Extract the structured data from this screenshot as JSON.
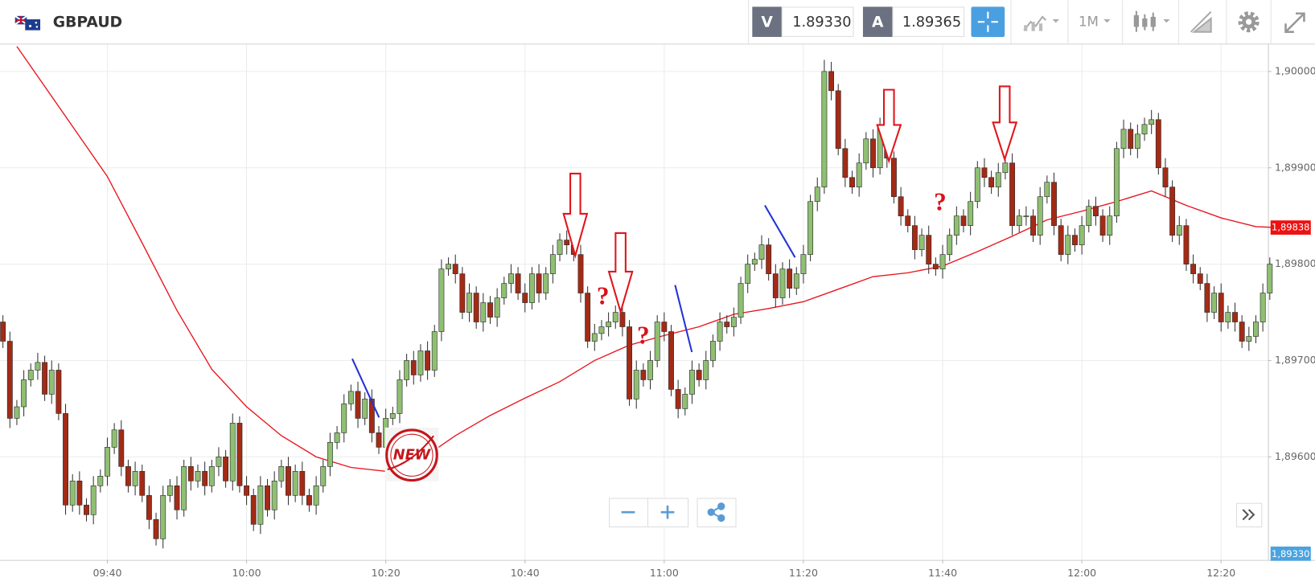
{
  "toolbar": {
    "symbol": "GBPAUD",
    "bid_label": "V",
    "bid": "1.89330",
    "ask_label": "A",
    "ask": "1.89365",
    "timeframe": "1M"
  },
  "chart_data": {
    "type": "candlestick",
    "x": [
      "09:25",
      "09:26",
      "09:27",
      "09:28",
      "09:29",
      "09:30",
      "09:31",
      "09:32",
      "09:33",
      "09:34",
      "09:35",
      "09:36",
      "09:37",
      "09:38",
      "09:39",
      "09:40",
      "09:41",
      "09:42",
      "09:43",
      "09:44",
      "09:45",
      "09:46",
      "09:47",
      "09:48",
      "09:49",
      "09:50",
      "09:51",
      "09:52",
      "09:53",
      "09:54",
      "09:55",
      "09:56",
      "09:57",
      "09:58",
      "09:59",
      "10:00",
      "10:01",
      "10:02",
      "10:03",
      "10:04",
      "10:05",
      "10:06",
      "10:07",
      "10:08",
      "10:09",
      "10:10",
      "10:11",
      "10:12",
      "10:13",
      "10:14",
      "10:15",
      "10:16",
      "10:17",
      "10:18",
      "10:19",
      "10:20",
      "10:21",
      "10:22",
      "10:23",
      "10:24",
      "10:25",
      "10:26",
      "10:27",
      "10:28",
      "10:29",
      "10:30",
      "10:31",
      "10:32",
      "10:33",
      "10:34",
      "10:35",
      "10:36",
      "10:37",
      "10:38",
      "10:39",
      "10:40",
      "10:41",
      "10:42",
      "10:43",
      "10:44",
      "10:45",
      "10:46",
      "10:47",
      "10:48",
      "10:49",
      "10:50",
      "10:51",
      "10:52",
      "10:53",
      "10:54",
      "10:55",
      "10:56",
      "10:57",
      "10:58",
      "10:59",
      "11:00",
      "11:01",
      "11:02",
      "11:03",
      "11:04",
      "11:05",
      "11:06",
      "11:07",
      "11:08",
      "11:09",
      "11:10",
      "11:11",
      "11:12",
      "11:13",
      "11:14",
      "11:15",
      "11:16",
      "11:17",
      "11:18",
      "11:19",
      "11:20",
      "11:21",
      "11:22",
      "11:23",
      "11:24",
      "11:25",
      "11:26",
      "11:27",
      "11:28",
      "11:29",
      "11:30",
      "11:31",
      "11:32",
      "11:33",
      "11:34",
      "11:35",
      "11:36",
      "11:37",
      "11:38",
      "11:39",
      "11:40",
      "11:41",
      "11:42",
      "11:43",
      "11:44",
      "11:45",
      "11:46",
      "11:47",
      "11:48",
      "11:49",
      "11:50",
      "11:51",
      "11:52",
      "11:53",
      "11:54",
      "11:55",
      "11:56",
      "11:57",
      "11:58",
      "11:59",
      "12:00",
      "12:01",
      "12:02",
      "12:03",
      "12:04",
      "12:05",
      "12:06",
      "12:07",
      "12:08",
      "12:09",
      "12:10",
      "12:11",
      "12:12",
      "12:13",
      "12:14",
      "12:15",
      "12:16",
      "12:17",
      "12:18",
      "12:19",
      "12:20",
      "12:21",
      "12:22",
      "12:23",
      "12:24",
      "12:25",
      "12:26",
      "12:27"
    ],
    "open": [
      1.8974,
      1.8972,
      1.8964,
      1.89652,
      1.8968,
      1.8969,
      1.89698,
      1.89665,
      1.8969,
      1.89645,
      1.8955,
      1.89575,
      1.8955,
      1.8954,
      1.8957,
      1.8958,
      1.8961,
      1.89628,
      1.8959,
      1.8957,
      1.89585,
      1.8956,
      1.89535,
      1.89515,
      1.8956,
      1.8957,
      1.89545,
      1.8959,
      1.89575,
      1.89585,
      1.8957,
      1.8959,
      1.896,
      1.89575,
      1.89635,
      1.8957,
      1.8956,
      1.8953,
      1.8957,
      1.89545,
      1.89575,
      1.8959,
      1.8956,
      1.89585,
      1.8956,
      1.8955,
      1.8957,
      1.8959,
      1.89615,
      1.89625,
      1.89655,
      1.89668,
      1.8964,
      1.8966,
      1.89625,
      1.8961,
      1.8964,
      1.89645,
      1.8968,
      1.897,
      1.89685,
      1.8971,
      1.8969,
      1.8973,
      1.89795,
      1.898,
      1.8979,
      1.8975,
      1.8977,
      1.8974,
      1.8976,
      1.89745,
      1.89765,
      1.8978,
      1.8979,
      1.8977,
      1.8976,
      1.8979,
      1.8977,
      1.8979,
      1.8981,
      1.89825,
      1.8982,
      1.8981,
      1.8977,
      1.8972,
      1.89728,
      1.89735,
      1.8974,
      1.8975,
      1.89735,
      1.8966,
      1.8969,
      1.8968,
      1.897,
      1.8974,
      1.8973,
      1.8967,
      1.8965,
      1.89665,
      1.8969,
      1.8968,
      1.897,
      1.8972,
      1.8974,
      1.89735,
      1.89745,
      1.8978,
      1.898,
      1.89805,
      1.8982,
      1.8979,
      1.89765,
      1.89795,
      1.89775,
      1.8979,
      1.8981,
      1.89865,
      1.8988,
      1.9,
      1.8998,
      1.8992,
      1.8989,
      1.8988,
      1.89905,
      1.8993,
      1.899,
      1.89945,
      1.8991,
      1.8987,
      1.8985,
      1.8984,
      1.89815,
      1.8983,
      1.898,
      1.89795,
      1.8981,
      1.8983,
      1.8985,
      1.8984,
      1.89865,
      1.899,
      1.8989,
      1.8988,
      1.89895,
      1.89905,
      1.8984,
      1.8985,
      1.8985,
      1.8983,
      1.8987,
      1.89885,
      1.8984,
      1.8981,
      1.8983,
      1.8982,
      1.8984,
      1.8986,
      1.8985,
      1.8983,
      1.8985,
      1.8992,
      1.8994,
      1.8992,
      1.89935,
      1.89945,
      1.8995,
      1.899,
      1.8988,
      1.8983,
      1.8984,
      1.898,
      1.8979,
      1.8978,
      1.8975,
      1.8977,
      1.8974,
      1.8975,
      1.8974,
      1.8972,
      1.89725,
      1.8974,
      1.8977
    ],
    "high": [
      1.89747,
      1.8973,
      1.89659,
      1.8969,
      1.89697,
      1.89708,
      1.89705,
      1.897,
      1.89697,
      1.89655,
      1.89582,
      1.89585,
      1.89557,
      1.8958,
      1.89587,
      1.8962,
      1.89635,
      1.89638,
      1.89597,
      1.89595,
      1.89592,
      1.8957,
      1.89542,
      1.8957,
      1.89577,
      1.8958,
      1.89597,
      1.896,
      1.89592,
      1.89595,
      1.89597,
      1.8961,
      1.89607,
      1.89645,
      1.89642,
      1.8958,
      1.89567,
      1.8958,
      1.89577,
      1.89585,
      1.89597,
      1.896,
      1.89592,
      1.89595,
      1.89567,
      1.8958,
      1.89597,
      1.89625,
      1.89632,
      1.89665,
      1.89675,
      1.89678,
      1.89667,
      1.8967,
      1.89632,
      1.8965,
      1.89652,
      1.8969,
      1.89707,
      1.8971,
      1.89717,
      1.8972,
      1.89737,
      1.89805,
      1.89807,
      1.8981,
      1.89797,
      1.8978,
      1.89777,
      1.8977,
      1.89767,
      1.89775,
      1.89787,
      1.898,
      1.89797,
      1.8978,
      1.89797,
      1.898,
      1.89797,
      1.8982,
      1.89832,
      1.89835,
      1.89827,
      1.8982,
      1.89777,
      1.89738,
      1.89742,
      1.8975,
      1.89757,
      1.8976,
      1.89742,
      1.897,
      1.89697,
      1.8971,
      1.89747,
      1.8975,
      1.89737,
      1.8968,
      1.89672,
      1.897,
      1.89697,
      1.8971,
      1.89727,
      1.8975,
      1.89747,
      1.89755,
      1.89787,
      1.8981,
      1.89812,
      1.8983,
      1.89827,
      1.898,
      1.89802,
      1.89805,
      1.89797,
      1.8982,
      1.89872,
      1.8989,
      1.90012,
      1.9001,
      1.89987,
      1.8993,
      1.89897,
      1.89915,
      1.89937,
      1.8994,
      1.89952,
      1.89955,
      1.89917,
      1.8988,
      1.89857,
      1.8985,
      1.89837,
      1.8984,
      1.89807,
      1.8982,
      1.89837,
      1.8986,
      1.89857,
      1.89875,
      1.89907,
      1.8991,
      1.89897,
      1.89905,
      1.89912,
      1.89915,
      1.89857,
      1.8986,
      1.89857,
      1.8988,
      1.89892,
      1.89895,
      1.89847,
      1.8984,
      1.89837,
      1.8985,
      1.89867,
      1.8987,
      1.89857,
      1.8986,
      1.89927,
      1.8995,
      1.89947,
      1.89945,
      1.89952,
      1.8996,
      1.89957,
      1.8991,
      1.89887,
      1.8985,
      1.89847,
      1.8981,
      1.89797,
      1.8979,
      1.89777,
      1.8978,
      1.89757,
      1.8976,
      1.89747,
      1.89735,
      1.89747,
      1.8978,
      1.89807
    ],
    "low": [
      1.89713,
      1.8963,
      1.89633,
      1.89642,
      1.89673,
      1.8968,
      1.89658,
      1.89655,
      1.89638,
      1.8954,
      1.89543,
      1.8954,
      1.89533,
      1.8953,
      1.89563,
      1.8957,
      1.89603,
      1.8958,
      1.89563,
      1.8956,
      1.89553,
      1.89525,
      1.89508,
      1.89505,
      1.89553,
      1.89535,
      1.89538,
      1.89565,
      1.89568,
      1.8956,
      1.89563,
      1.8958,
      1.89568,
      1.89565,
      1.89563,
      1.8955,
      1.89523,
      1.8952,
      1.89538,
      1.89535,
      1.89568,
      1.8955,
      1.89553,
      1.8955,
      1.89543,
      1.8954,
      1.89563,
      1.8958,
      1.89608,
      1.89615,
      1.89648,
      1.8963,
      1.89633,
      1.89615,
      1.89603,
      1.896,
      1.89633,
      1.89635,
      1.89673,
      1.89675,
      1.89678,
      1.8968,
      1.89683,
      1.8972,
      1.89788,
      1.8978,
      1.89743,
      1.8974,
      1.89733,
      1.8973,
      1.89738,
      1.89735,
      1.89758,
      1.8977,
      1.89763,
      1.8975,
      1.89753,
      1.8976,
      1.89763,
      1.8978,
      1.89803,
      1.8981,
      1.89803,
      1.8976,
      1.89713,
      1.8971,
      1.89721,
      1.89725,
      1.89733,
      1.89725,
      1.89653,
      1.8965,
      1.89673,
      1.8967,
      1.89693,
      1.8972,
      1.89663,
      1.8964,
      1.89643,
      1.89655,
      1.89673,
      1.8967,
      1.89693,
      1.8971,
      1.89728,
      1.89725,
      1.89738,
      1.8977,
      1.89793,
      1.89795,
      1.89783,
      1.89755,
      1.89758,
      1.89765,
      1.89768,
      1.8978,
      1.89803,
      1.89855,
      1.89873,
      1.8997,
      1.89913,
      1.8988,
      1.89873,
      1.8987,
      1.89898,
      1.8989,
      1.89893,
      1.899,
      1.89863,
      1.8984,
      1.89833,
      1.89805,
      1.89808,
      1.8979,
      1.89788,
      1.89785,
      1.89803,
      1.8982,
      1.89833,
      1.8983,
      1.89858,
      1.8988,
      1.89873,
      1.8987,
      1.89888,
      1.8983,
      1.89833,
      1.8984,
      1.89823,
      1.8982,
      1.89863,
      1.8983,
      1.89803,
      1.898,
      1.89813,
      1.8981,
      1.89833,
      1.8984,
      1.89823,
      1.8982,
      1.89843,
      1.8991,
      1.89913,
      1.8991,
      1.89928,
      1.89935,
      1.89893,
      1.8987,
      1.89823,
      1.8982,
      1.89793,
      1.8978,
      1.89773,
      1.8974,
      1.89743,
      1.8973,
      1.89733,
      1.8973,
      1.89713,
      1.8971,
      1.89718,
      1.8973,
      1.89763
    ],
    "close": [
      1.8972,
      1.8964,
      1.89652,
      1.8968,
      1.8969,
      1.89698,
      1.89665,
      1.8969,
      1.89645,
      1.8955,
      1.89575,
      1.8955,
      1.8954,
      1.8957,
      1.8958,
      1.8961,
      1.89628,
      1.8959,
      1.8957,
      1.89585,
      1.8956,
      1.89535,
      1.89515,
      1.8956,
      1.8957,
      1.89545,
      1.8959,
      1.89575,
      1.89585,
      1.8957,
      1.8959,
      1.896,
      1.89575,
      1.89635,
      1.8957,
      1.8956,
      1.8953,
      1.8957,
      1.89545,
      1.89575,
      1.8959,
      1.8956,
      1.89585,
      1.8956,
      1.8955,
      1.8957,
      1.8959,
      1.89615,
      1.89625,
      1.89655,
      1.89668,
      1.8964,
      1.8966,
      1.89625,
      1.8961,
      1.8964,
      1.89645,
      1.8968,
      1.897,
      1.89685,
      1.8971,
      1.8969,
      1.8973,
      1.89795,
      1.898,
      1.8979,
      1.8975,
      1.8977,
      1.8974,
      1.8976,
      1.89745,
      1.89765,
      1.8978,
      1.8979,
      1.8977,
      1.8976,
      1.8979,
      1.8977,
      1.8979,
      1.8981,
      1.89825,
      1.8982,
      1.8981,
      1.8977,
      1.8972,
      1.89728,
      1.89735,
      1.8974,
      1.8975,
      1.89735,
      1.8966,
      1.8969,
      1.8968,
      1.897,
      1.8974,
      1.8973,
      1.8967,
      1.8965,
      1.89665,
      1.8969,
      1.8968,
      1.897,
      1.8972,
      1.8974,
      1.89735,
      1.89745,
      1.8978,
      1.898,
      1.89805,
      1.8982,
      1.8979,
      1.89765,
      1.89795,
      1.89775,
      1.8979,
      1.8981,
      1.89865,
      1.8988,
      1.9,
      1.8998,
      1.8992,
      1.8989,
      1.8988,
      1.89905,
      1.8993,
      1.899,
      1.89945,
      1.8991,
      1.8987,
      1.8985,
      1.8984,
      1.89815,
      1.8983,
      1.898,
      1.89795,
      1.8981,
      1.8983,
      1.8985,
      1.8984,
      1.89865,
      1.899,
      1.8989,
      1.8988,
      1.89895,
      1.89905,
      1.8984,
      1.8985,
      1.8985,
      1.8983,
      1.8987,
      1.89885,
      1.8984,
      1.8981,
      1.8983,
      1.8982,
      1.8984,
      1.8986,
      1.8985,
      1.8983,
      1.8985,
      1.8992,
      1.8994,
      1.8992,
      1.89935,
      1.89945,
      1.8995,
      1.899,
      1.8988,
      1.8983,
      1.8984,
      1.898,
      1.8979,
      1.8978,
      1.8975,
      1.8977,
      1.8974,
      1.8975,
      1.8974,
      1.8972,
      1.89725,
      1.8974,
      1.8977,
      1.898
    ],
    "up_color": "#8fbf72",
    "down_color": "#a32b16",
    "ylim": [
      1.89493,
      1.90028
    ],
    "yticks": [
      {
        "value": 1.896,
        "label": "1,89600"
      },
      {
        "value": 1.897,
        "label": "1,89700"
      },
      {
        "value": 1.898,
        "label": "1,89800"
      },
      {
        "value": 1.899,
        "label": "1,89900"
      },
      {
        "value": 1.9,
        "label": "1,90000"
      }
    ],
    "xticks": [
      "09:40",
      "10:00",
      "10:20",
      "10:40",
      "11:00",
      "11:20",
      "11:40",
      "12:00",
      "12:20"
    ],
    "grid": true,
    "moving_average": {
      "color": "#e8141c",
      "x": [
        "09:27",
        "09:35",
        "09:40",
        "09:45",
        "09:50",
        "09:55",
        "10:00",
        "10:05",
        "10:10",
        "10:15",
        "10:20",
        "10:25",
        "10:30",
        "10:35",
        "10:40",
        "10:45",
        "10:50",
        "10:55",
        "11:00",
        "11:05",
        "11:10",
        "11:15",
        "11:20",
        "11:25",
        "11:30",
        "11:35",
        "11:40",
        "11:45",
        "11:50",
        "11:55",
        "12:00",
        "12:05",
        "12:10",
        "12:15",
        "12:20",
        "12:25",
        "12:28"
      ],
      "values": [
        1.90026,
        1.89943,
        1.89891,
        1.89822,
        1.89752,
        1.89691,
        1.89652,
        1.89622,
        1.896,
        1.89589,
        1.89585,
        1.89597,
        1.89622,
        1.89643,
        1.89661,
        1.89678,
        1.897,
        1.89716,
        1.89726,
        1.89735,
        1.89748,
        1.89754,
        1.89761,
        1.89774,
        1.89787,
        1.89791,
        1.89798,
        1.89813,
        1.89829,
        1.89846,
        1.89855,
        1.89865,
        1.89876,
        1.89861,
        1.89848,
        1.89839,
        1.89838
      ]
    },
    "price_labels": [
      "1,89838",
      "1,89330"
    ],
    "annotations": [
      "?",
      "?",
      "?",
      "NEW"
    ]
  }
}
